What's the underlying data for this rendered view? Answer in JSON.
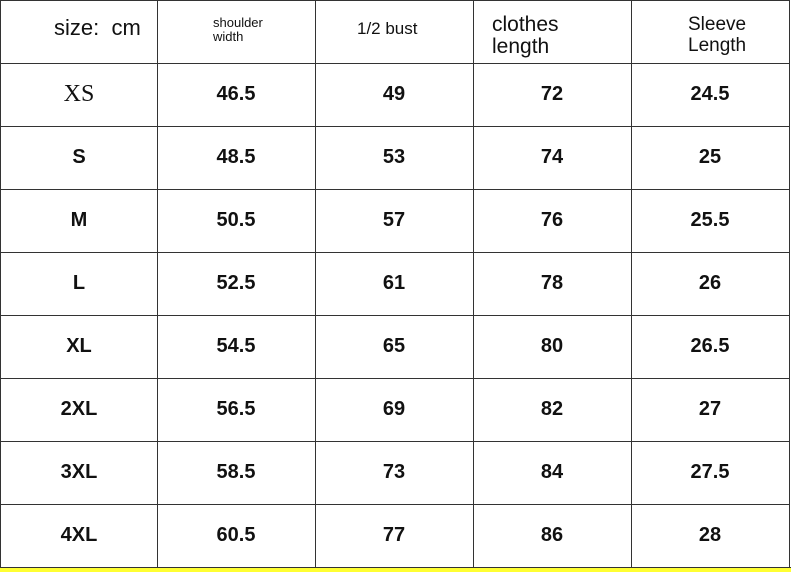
{
  "header": {
    "size": "size:  cm",
    "shoulder": [
      "shoulder",
      "width"
    ],
    "bust": "1/2 bust",
    "clothes": [
      "clothes",
      "length"
    ],
    "sleeve": [
      "Sleeve",
      "Length"
    ]
  },
  "rows": [
    {
      "size": "XS",
      "shoulder": "46.5",
      "bust": "49",
      "clothes": "72",
      "sleeve": "24.5"
    },
    {
      "size": "S",
      "shoulder": "48.5",
      "bust": "53",
      "clothes": "74",
      "sleeve": "25"
    },
    {
      "size": "M",
      "shoulder": "50.5",
      "bust": "57",
      "clothes": "76",
      "sleeve": "25.5"
    },
    {
      "size": "L",
      "shoulder": "52.5",
      "bust": "61",
      "clothes": "78",
      "sleeve": "26"
    },
    {
      "size": "XL",
      "shoulder": "54.5",
      "bust": "65",
      "clothes": "80",
      "sleeve": "26.5"
    },
    {
      "size": "2XL",
      "shoulder": "56.5",
      "bust": "69",
      "clothes": "82",
      "sleeve": "27"
    },
    {
      "size": "3XL",
      "shoulder": "58.5",
      "bust": "73",
      "clothes": "84",
      "sleeve": "27.5"
    },
    {
      "size": "4XL",
      "shoulder": "60.5",
      "bust": "77",
      "clothes": "86",
      "sleeve": "28"
    }
  ],
  "colors": {
    "border": "#333333",
    "footer_strip": "#ffff33"
  }
}
